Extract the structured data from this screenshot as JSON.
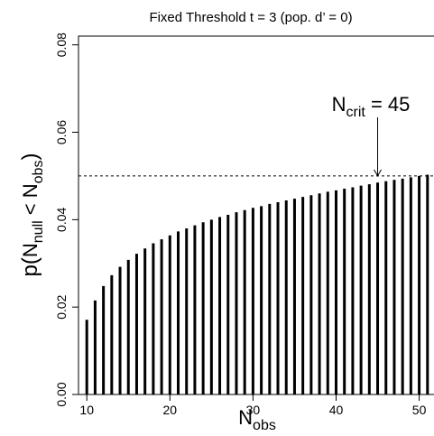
{
  "chart_data": {
    "type": "bar",
    "title": "Fixed Threshold t = 3 (pop. d’ = 0)",
    "xlabel": {
      "main": "N",
      "sub": "obs"
    },
    "ylabel": {
      "prefix": "p(",
      "n1": "N",
      "n1_sub": "null",
      "op": " < ",
      "n2": "N",
      "n2_sub": "obs",
      "suffix": ")"
    },
    "xlim": [
      9,
      52
    ],
    "ylim": [
      0,
      0.082
    ],
    "xticks": [
      "10",
      "20",
      "30",
      "40",
      "50"
    ],
    "yticks": [
      "0.00",
      "0.02",
      "0.04",
      "0.06",
      "0.08"
    ],
    "x": [
      10,
      11,
      12,
      13,
      14,
      15,
      16,
      17,
      18,
      19,
      20,
      21,
      22,
      23,
      24,
      25,
      26,
      27,
      28,
      29,
      30,
      31,
      32,
      33,
      34,
      35,
      36,
      37,
      38,
      39,
      40,
      41,
      42,
      43,
      44,
      45,
      46,
      47,
      48,
      49,
      50,
      51
    ],
    "values": [
      0.0171,
      0.0215,
      0.0248,
      0.0273,
      0.0292,
      0.0308,
      0.0322,
      0.0334,
      0.0346,
      0.0355,
      0.0364,
      0.0373,
      0.038,
      0.0387,
      0.0394,
      0.04,
      0.0406,
      0.0411,
      0.0417,
      0.0422,
      0.0427,
      0.0431,
      0.0436,
      0.044,
      0.0444,
      0.0448,
      0.0452,
      0.0456,
      0.046,
      0.0464,
      0.0467,
      0.0471,
      0.0474,
      0.0478,
      0.0481,
      0.0485,
      0.0488,
      0.0491,
      0.0494,
      0.0497,
      0.05,
      0.0503
    ],
    "reference_line": 0.05,
    "annotation": {
      "main": "N",
      "sub": "crit",
      "rest": " = 45",
      "x": 45
    },
    "grid": false
  }
}
